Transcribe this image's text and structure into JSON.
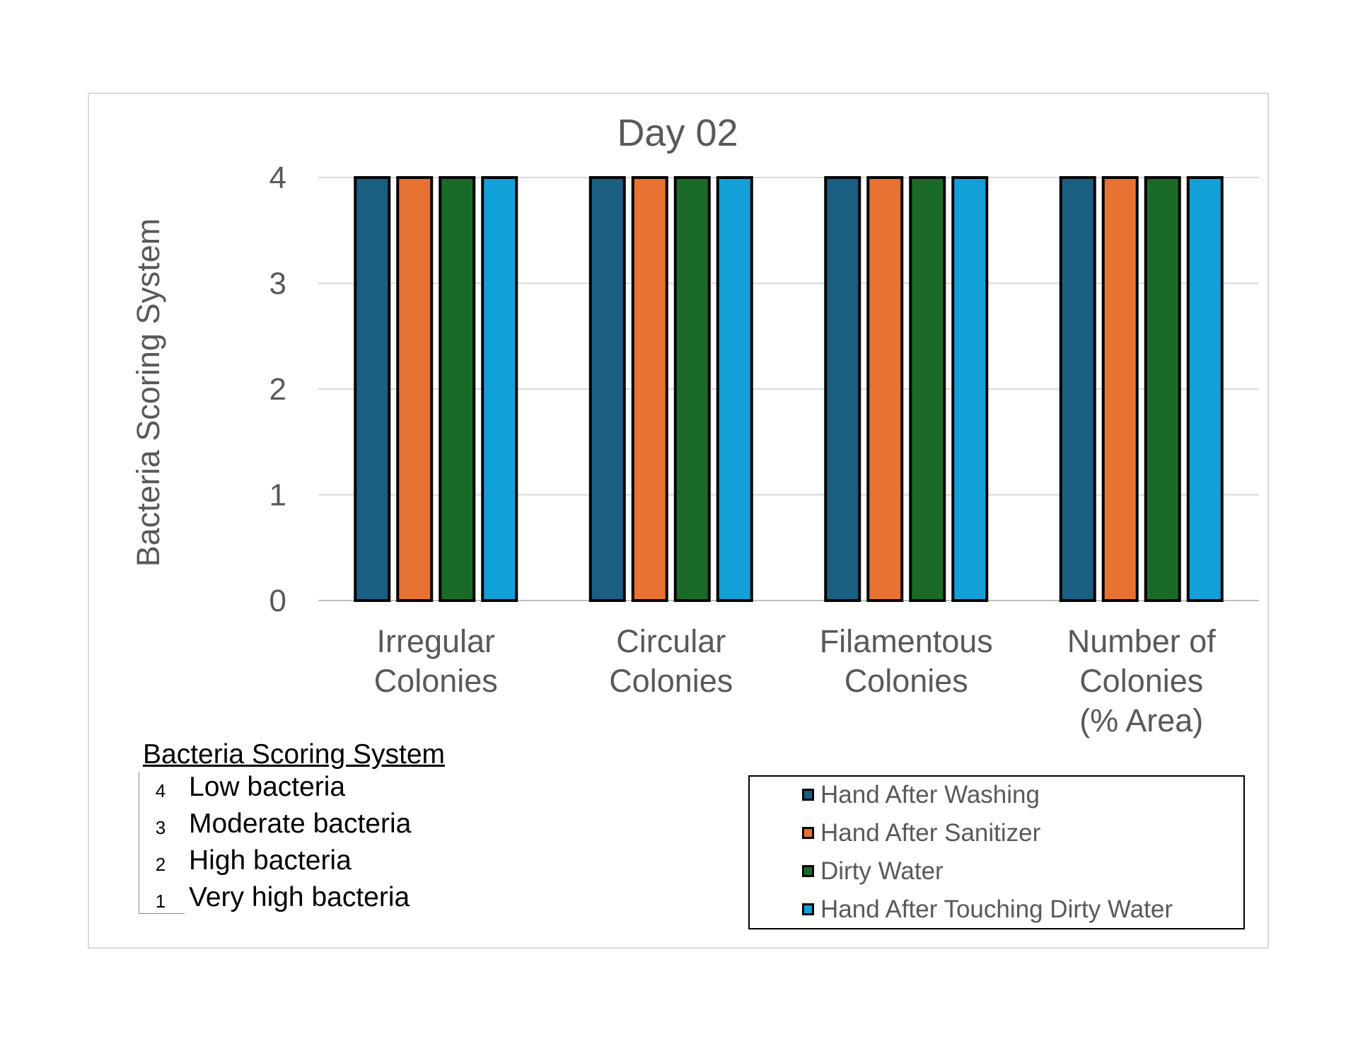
{
  "chart_data": {
    "type": "bar",
    "title": "Day 02",
    "ylabel": "Bacteria Scoring System",
    "xlabel": "",
    "ylim": [
      0,
      4
    ],
    "yticks": [
      "0",
      "1",
      "2",
      "3",
      "4"
    ],
    "categories": [
      [
        "Irregular",
        "Colonies"
      ],
      [
        "Circular",
        "Colonies"
      ],
      [
        "Filamentous",
        "Colonies"
      ],
      [
        "Number of",
        "Colonies",
        "(% Area)"
      ]
    ],
    "series": [
      {
        "name": "Hand After Washing",
        "color": "#1a5e82",
        "values": [
          4,
          4,
          4,
          4
        ]
      },
      {
        "name": "Hand After Sanitizer",
        "color": "#e87232",
        "values": [
          4,
          4,
          4,
          4
        ]
      },
      {
        "name": "Dirty Water",
        "color": "#1b6b28",
        "values": [
          4,
          4,
          4,
          4
        ]
      },
      {
        "name": "Hand After Touching Dirty Water",
        "color": "#13a0d8",
        "values": [
          4,
          4,
          4,
          4
        ]
      }
    ],
    "grid": true,
    "legend_position": "bottom-right"
  },
  "scoring": {
    "title": "Bacteria Scoring System",
    "items": [
      {
        "score": "4",
        "label": "Low bacteria"
      },
      {
        "score": "3",
        "label": "Moderate bacteria"
      },
      {
        "score": "2",
        "label": "High bacteria"
      },
      {
        "score": "1",
        "label": "Very high bacteria"
      }
    ]
  }
}
